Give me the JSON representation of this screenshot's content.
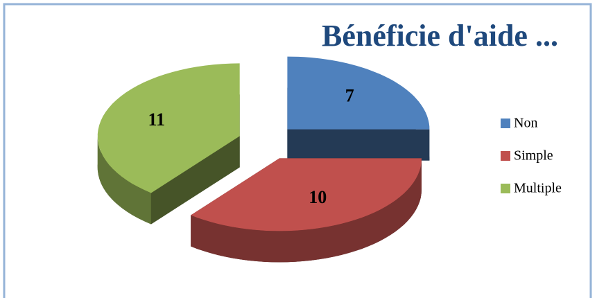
{
  "chart_data": {
    "type": "pie3d",
    "title": "Bénéficie d'aide ...",
    "categories": [
      "Non",
      "Simple",
      "Multiple"
    ],
    "values": [
      7,
      10,
      11
    ],
    "colors": [
      "#4f81bd",
      "#c0504d",
      "#9bbb59"
    ],
    "legend": "right"
  }
}
